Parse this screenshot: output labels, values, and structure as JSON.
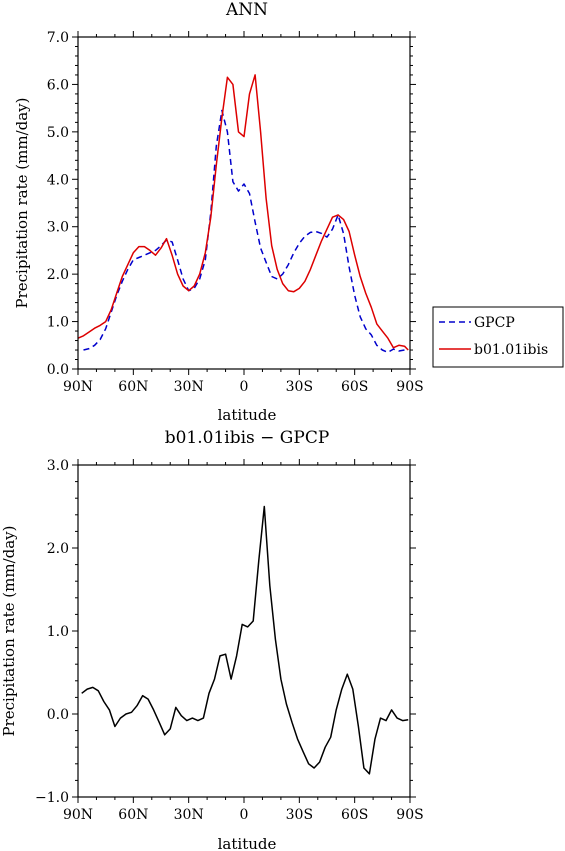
{
  "chart_data": [
    {
      "type": "line",
      "title": "ANN",
      "xlabel": "latitude",
      "ylabel": "Precipitation rate (mm/day)",
      "xlim": [
        90,
        -90
      ],
      "ylim": [
        0,
        7
      ],
      "x_ticks": [
        90,
        60,
        30,
        0,
        -30,
        -60,
        -90
      ],
      "x_tick_labels": [
        "90N",
        "60N",
        "30N",
        "0",
        "30S",
        "60S",
        "90S"
      ],
      "y_ticks": [
        0,
        1,
        2,
        3,
        4,
        5,
        6,
        7
      ],
      "y_tick_labels": [
        "0.0",
        "1.0",
        "2.0",
        "3.0",
        "4.0",
        "5.0",
        "6.0",
        "7.0"
      ],
      "legend_position": "right",
      "series": [
        {
          "name": "GPCP",
          "color": "#0000cc",
          "dash": "dashed",
          "x": [
            87,
            84,
            81,
            78,
            75,
            72,
            69,
            66,
            63,
            60,
            57,
            54,
            51,
            48,
            45,
            42,
            39,
            36,
            33,
            30,
            27,
            24,
            21,
            18,
            15,
            12,
            9,
            6,
            3,
            0,
            -3,
            -6,
            -9,
            -12,
            -15,
            -18,
            -21,
            -24,
            -27,
            -30,
            -33,
            -36,
            -39,
            -42,
            -45,
            -48,
            -51,
            -54,
            -57,
            -60,
            -63,
            -66,
            -69,
            -72,
            -75,
            -78,
            -81,
            -84,
            -87,
            -89
          ],
          "y": [
            0.4,
            0.43,
            0.5,
            0.62,
            0.85,
            1.2,
            1.55,
            1.85,
            2.1,
            2.3,
            2.35,
            2.4,
            2.45,
            2.5,
            2.6,
            2.72,
            2.68,
            2.3,
            1.9,
            1.65,
            1.7,
            1.9,
            2.3,
            3.3,
            4.7,
            5.45,
            5.0,
            3.95,
            3.75,
            3.9,
            3.7,
            3.1,
            2.55,
            2.25,
            1.95,
            1.9,
            2.0,
            2.2,
            2.45,
            2.65,
            2.8,
            2.88,
            2.9,
            2.86,
            2.78,
            2.95,
            3.25,
            2.85,
            2.15,
            1.55,
            1.1,
            0.85,
            0.72,
            0.5,
            0.4,
            0.35,
            0.42,
            0.38,
            0.4,
            0.42
          ]
        },
        {
          "name": "b01.01ibis",
          "color": "#dd0000",
          "dash": "solid",
          "x": [
            90,
            87,
            84,
            81,
            78,
            75,
            72,
            69,
            66,
            63,
            60,
            57,
            54,
            51,
            48,
            45,
            42,
            39,
            36,
            33,
            30,
            27,
            24,
            21,
            18,
            15,
            12,
            9,
            6,
            3,
            0,
            -3,
            -6,
            -9,
            -12,
            -15,
            -18,
            -21,
            -24,
            -27,
            -30,
            -33,
            -36,
            -39,
            -42,
            -45,
            -48,
            -51,
            -54,
            -57,
            -60,
            -63,
            -66,
            -69,
            -72,
            -75,
            -78,
            -81,
            -84,
            -87,
            -89
          ],
          "y": [
            0.65,
            0.7,
            0.78,
            0.86,
            0.92,
            1.0,
            1.25,
            1.6,
            1.95,
            2.2,
            2.45,
            2.58,
            2.58,
            2.5,
            2.4,
            2.55,
            2.75,
            2.4,
            2.0,
            1.75,
            1.65,
            1.75,
            2.0,
            2.45,
            3.2,
            4.3,
            5.3,
            6.15,
            6.0,
            5.0,
            4.9,
            5.8,
            6.2,
            5.0,
            3.6,
            2.6,
            2.1,
            1.8,
            1.65,
            1.63,
            1.7,
            1.85,
            2.1,
            2.4,
            2.7,
            2.95,
            3.2,
            3.25,
            3.15,
            2.9,
            2.4,
            1.95,
            1.6,
            1.3,
            0.95,
            0.8,
            0.65,
            0.45,
            0.5,
            0.48,
            0.4
          ]
        }
      ]
    },
    {
      "type": "line",
      "title": "b01.01ibis − GPCP",
      "xlabel": "latitude",
      "ylabel": "Precipitation rate (mm/day)",
      "xlim": [
        90,
        -90
      ],
      "ylim": [
        -1,
        3
      ],
      "x_ticks": [
        90,
        60,
        30,
        0,
        -30,
        -60,
        -90
      ],
      "x_tick_labels": [
        "90N",
        "60N",
        "30N",
        "0",
        "30S",
        "60S",
        "90S"
      ],
      "y_ticks": [
        -1,
        0,
        1,
        2,
        3
      ],
      "y_tick_labels": [
        "−1.0",
        "0.0",
        "1.0",
        "2.0",
        "3.0"
      ],
      "series": [
        {
          "color": "#000000",
          "dash": "solid",
          "x": [
            88,
            85,
            82,
            79,
            76,
            73,
            70,
            67,
            64,
            61,
            58,
            55,
            52,
            49,
            46,
            43,
            40,
            37,
            34,
            31,
            28,
            25,
            22,
            19,
            16,
            13,
            10,
            7,
            4,
            1,
            -2,
            -5,
            -8,
            -11,
            -14,
            -17,
            -20,
            -23,
            -26,
            -29,
            -32,
            -35,
            -38,
            -41,
            -44,
            -47,
            -50,
            -53,
            -56,
            -59,
            -62,
            -65,
            -68,
            -71,
            -74,
            -77,
            -80,
            -83,
            -86,
            -89
          ],
          "y": [
            0.25,
            0.3,
            0.32,
            0.28,
            0.15,
            0.05,
            -0.15,
            -0.05,
            0.0,
            0.02,
            0.1,
            0.22,
            0.18,
            0.05,
            -0.1,
            -0.25,
            -0.18,
            0.08,
            -0.02,
            -0.08,
            -0.05,
            -0.08,
            -0.05,
            0.25,
            0.42,
            0.7,
            0.72,
            0.42,
            0.7,
            1.08,
            1.05,
            1.12,
            1.85,
            2.5,
            1.55,
            0.9,
            0.42,
            0.12,
            -0.1,
            -0.3,
            -0.45,
            -0.6,
            -0.65,
            -0.58,
            -0.4,
            -0.28,
            0.05,
            0.3,
            0.48,
            0.3,
            -0.15,
            -0.65,
            -0.72,
            -0.3,
            -0.05,
            -0.08,
            0.05,
            -0.05,
            -0.08,
            -0.07
          ]
        }
      ]
    }
  ]
}
